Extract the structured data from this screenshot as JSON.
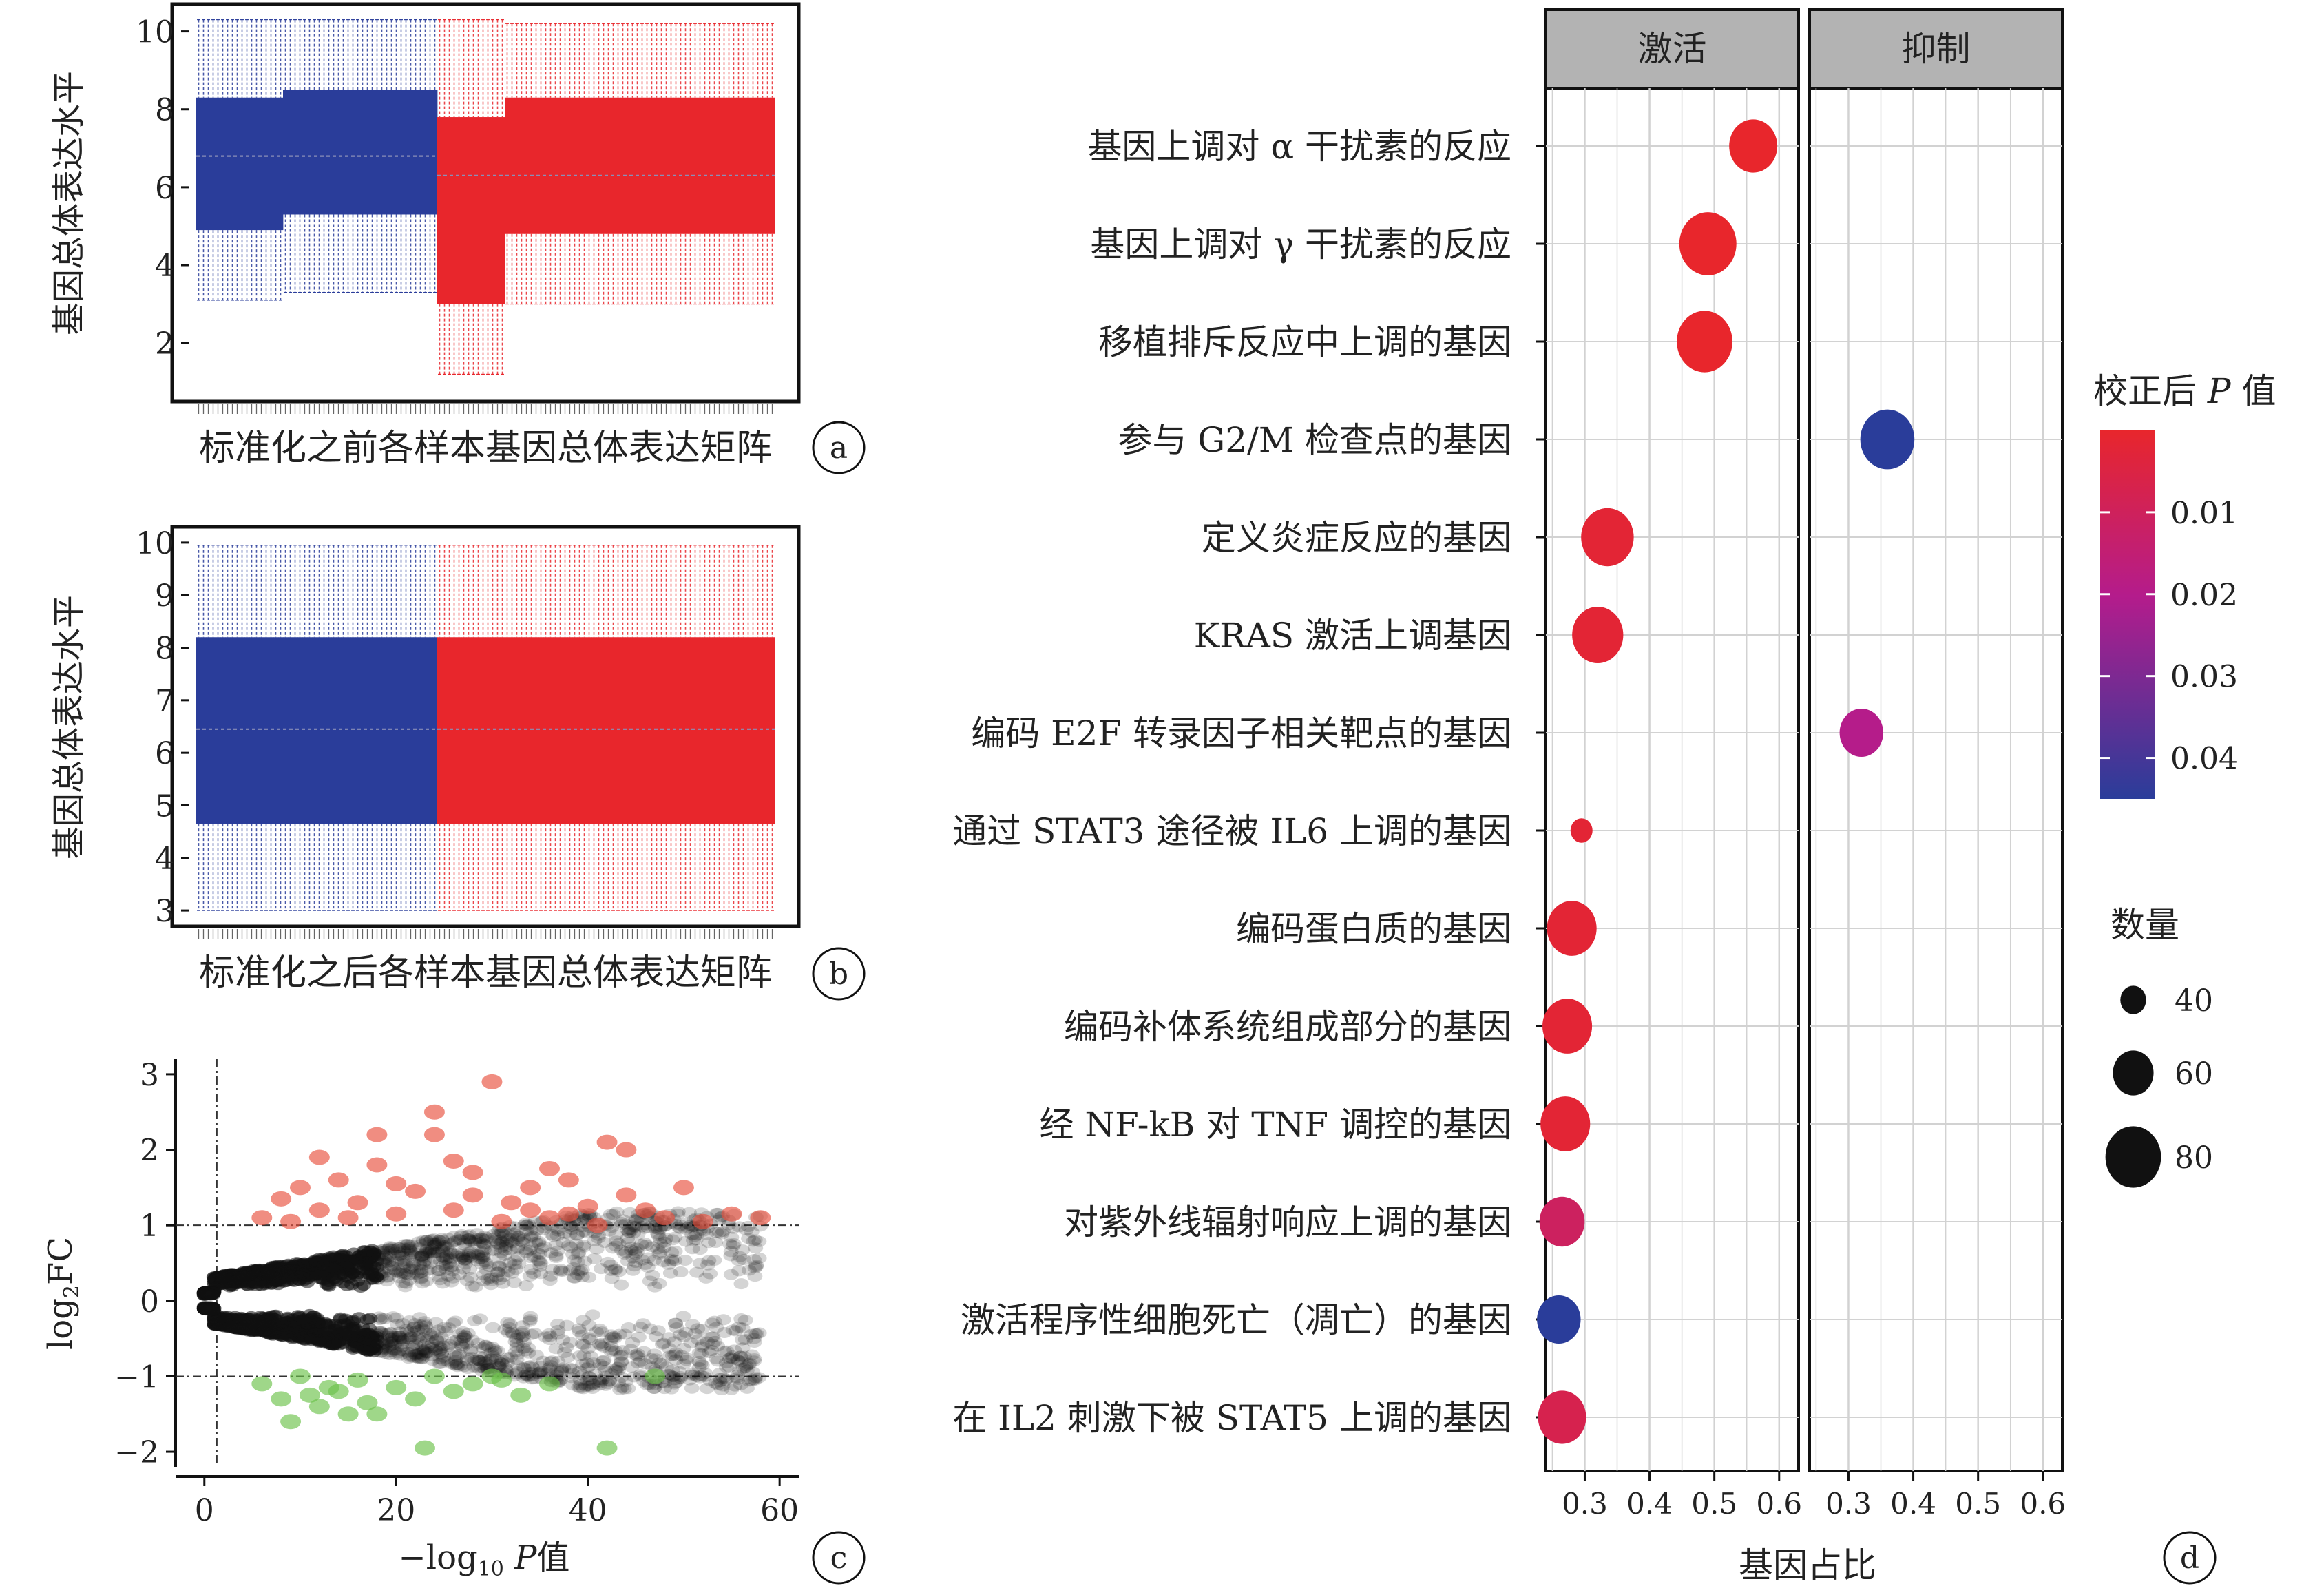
{
  "chart_data": [
    {
      "panel": "a",
      "type": "box",
      "xlabel": "标准化之前各样本基因总体表达矩阵",
      "ylabel": "基因总体表达水平",
      "ylim": [
        0.5,
        10.7
      ],
      "yticks": [
        2,
        4,
        6,
        8,
        10
      ],
      "groups": [
        {
          "color": "#2a3d9a",
          "n": 50,
          "median": 6.8,
          "segments": [
            {
              "from": 0,
              "to": 18,
              "q1": 4.9,
              "q3": 8.3,
              "whisker_low": 3.1,
              "whisker_high": 10.3
            },
            {
              "from": 18,
              "to": 50,
              "q1": 5.3,
              "q3": 8.5,
              "whisker_low": 3.3,
              "whisker_high": 10.3
            }
          ]
        },
        {
          "color": "#e8262c",
          "n": 70,
          "median": 6.3,
          "segments": [
            {
              "from": 0,
              "to": 14,
              "q1": 3.0,
              "q3": 7.8,
              "whisker_low": 1.2,
              "whisker_high": 10.3
            },
            {
              "from": 14,
              "to": 70,
              "q1": 4.8,
              "q3": 8.3,
              "whisker_low": 3.0,
              "whisker_high": 10.2
            }
          ]
        }
      ]
    },
    {
      "panel": "b",
      "type": "box",
      "xlabel": "标准化之后各样本基因总体表达矩阵",
      "ylabel": "基因总体表达水平",
      "ylim": [
        2.7,
        10.3
      ],
      "yticks": [
        3,
        4,
        5,
        6,
        7,
        8,
        9,
        10
      ],
      "groups": [
        {
          "color": "#2a3d9a",
          "n": 50,
          "median": 6.45,
          "q1": 4.65,
          "q3": 8.2,
          "whisker_low": 3.0,
          "whisker_high": 9.95
        },
        {
          "color": "#e8262c",
          "n": 70,
          "median": 6.45,
          "q1": 4.65,
          "q3": 8.2,
          "whisker_low": 3.0,
          "whisker_high": 9.95
        }
      ]
    },
    {
      "panel": "c",
      "type": "scatter",
      "xlabel": "−log10 P值",
      "ylabel": "log2FC",
      "xlim": [
        -3,
        62
      ],
      "ylim": [
        -2.2,
        3.2
      ],
      "xticks": [
        0,
        20,
        40,
        60
      ],
      "yticks": [
        -2,
        -1,
        0,
        1,
        2,
        3
      ],
      "thresholds": {
        "x": 1.3,
        "y": [
          1,
          -1
        ]
      },
      "colors": {
        "up": "#e8503e",
        "down": "#6cc24a",
        "ns": "#111111"
      },
      "up": [
        [
          8,
          1.35
        ],
        [
          10,
          1.5
        ],
        [
          12,
          1.2
        ],
        [
          14,
          1.6
        ],
        [
          16,
          1.3
        ],
        [
          18,
          1.8
        ],
        [
          20,
          1.15
        ],
        [
          22,
          1.45
        ],
        [
          24,
          2.5
        ],
        [
          26,
          1.2
        ],
        [
          28,
          1.7
        ],
        [
          30,
          2.9
        ],
        [
          32,
          1.3
        ],
        [
          34,
          1.5
        ],
        [
          36,
          1.1
        ],
        [
          38,
          1.6
        ],
        [
          40,
          1.25
        ],
        [
          42,
          2.1
        ],
        [
          44,
          1.4
        ],
        [
          46,
          1.2
        ],
        [
          48,
          1.1
        ],
        [
          50,
          1.5
        ],
        [
          52,
          1.05
        ],
        [
          55,
          1.15
        ],
        [
          58,
          1.1
        ],
        [
          24,
          2.2
        ],
        [
          18,
          2.2
        ],
        [
          12,
          1.9
        ],
        [
          6,
          1.1
        ],
        [
          28,
          1.4
        ],
        [
          34,
          1.2
        ],
        [
          38,
          1.15
        ],
        [
          44,
          2.0
        ],
        [
          9,
          1.05
        ],
        [
          15,
          1.1
        ],
        [
          20,
          1.55
        ],
        [
          26,
          1.85
        ],
        [
          31,
          1.05
        ],
        [
          36,
          1.75
        ],
        [
          41,
          1.0
        ]
      ],
      "down": [
        [
          6,
          -1.1
        ],
        [
          8,
          -1.3
        ],
        [
          10,
          -1.0
        ],
        [
          12,
          -1.4
        ],
        [
          14,
          -1.2
        ],
        [
          16,
          -1.05
        ],
        [
          18,
          -1.5
        ],
        [
          20,
          -1.15
        ],
        [
          22,
          -1.3
        ],
        [
          24,
          -1.0
        ],
        [
          26,
          -1.2
        ],
        [
          28,
          -1.1
        ],
        [
          31,
          -1.05
        ],
        [
          33,
          -1.25
        ],
        [
          36,
          -1.1
        ],
        [
          42,
          -1.95
        ],
        [
          47,
          -1.0
        ],
        [
          9,
          -1.6
        ],
        [
          13,
          -1.15
        ],
        [
          17,
          -1.35
        ],
        [
          23,
          -1.95
        ],
        [
          30,
          -1.0
        ],
        [
          15,
          -1.5
        ],
        [
          11,
          -1.25
        ]
      ]
    },
    {
      "panel": "d",
      "type": "dot",
      "facets": [
        "激活",
        "抑制"
      ],
      "xlabel": "基因占比",
      "xticks": [
        0.3,
        0.4,
        0.5,
        0.6
      ],
      "xlim": [
        0.24,
        0.63
      ],
      "color_legend_title": "校正后 P 值",
      "color_ticks": [
        0.01,
        0.02,
        0.03,
        0.04
      ],
      "color_range": [
        0.0,
        0.045
      ],
      "size_legend_title": "数量",
      "size_ticks": [
        40,
        60,
        80
      ],
      "terms": [
        {
          "label": "基因上调对 α 干扰素的反应",
          "facet": 0,
          "ratio": 0.56,
          "count": 70,
          "padj": 0.0
        },
        {
          "label": "基因上调对 γ 干扰素的反应",
          "facet": 0,
          "ratio": 0.49,
          "count": 82,
          "padj": 0.0
        },
        {
          "label": "移植排斥反应中上调的基因",
          "facet": 0,
          "ratio": 0.485,
          "count": 80,
          "padj": 0.0
        },
        {
          "label": "参与 G2/M 检查点的基因",
          "facet": 1,
          "ratio": 0.36,
          "count": 78,
          "padj": 0.045
        },
        {
          "label": "定义炎症反应的基因",
          "facet": 0,
          "ratio": 0.335,
          "count": 76,
          "padj": 0.002
        },
        {
          "label": "KRAS 激活上调基因",
          "facet": 0,
          "ratio": 0.32,
          "count": 74,
          "padj": 0.002
        },
        {
          "label": "编码 E2F 转录因子相关靶点的基因",
          "facet": 1,
          "ratio": 0.32,
          "count": 64,
          "padj": 0.022
        },
        {
          "label": "通过 STAT3 途径被 IL6 上调的基因",
          "facet": 0,
          "ratio": 0.295,
          "count": 35,
          "padj": 0.002
        },
        {
          "label": "编码蛋白质的基因",
          "facet": 0,
          "ratio": 0.28,
          "count": 72,
          "padj": 0.002
        },
        {
          "label": "编码补体系统组成部分的基因",
          "facet": 0,
          "ratio": 0.273,
          "count": 72,
          "padj": 0.002
        },
        {
          "label": "经 NF-kB 对 TNF 调控的基因",
          "facet": 0,
          "ratio": 0.27,
          "count": 72,
          "padj": 0.002
        },
        {
          "label": "对紫外线辐射响应上调的基因",
          "facet": 0,
          "ratio": 0.265,
          "count": 66,
          "padj": 0.012
        },
        {
          "label": "激活程序性细胞死亡（凋亡）的基因",
          "facet": 0,
          "ratio": 0.26,
          "count": 64,
          "padj": 0.045
        },
        {
          "label": "在 IL2 刺激下被 STAT5 上调的基因",
          "facet": 0,
          "ratio": 0.265,
          "count": 70,
          "padj": 0.008
        }
      ]
    }
  ],
  "panel_labels": [
    "a",
    "b",
    "c",
    "d"
  ]
}
